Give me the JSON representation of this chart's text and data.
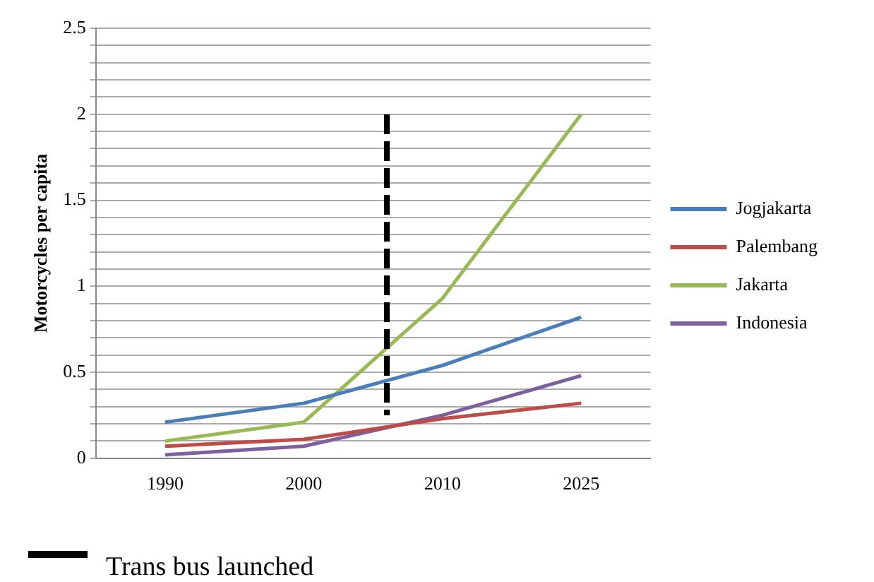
{
  "chart_data": {
    "type": "line",
    "ylabel": "Motorcycles per capita",
    "categories": [
      "1990",
      "2000",
      "2010",
      "2025"
    ],
    "series": [
      {
        "name": "Jogjakarta",
        "color": "#4a7ebb",
        "values": [
          0.21,
          0.32,
          0.54,
          0.82
        ]
      },
      {
        "name": "Palembang",
        "color": "#be4b48",
        "values": [
          0.07,
          0.11,
          0.23,
          0.32
        ]
      },
      {
        "name": "Jakarta",
        "color": "#98b954",
        "values": [
          0.1,
          0.21,
          0.93,
          2.0
        ]
      },
      {
        "name": "Indonesia",
        "color": "#7d60a0",
        "values": [
          0.02,
          0.07,
          0.25,
          0.48
        ]
      }
    ],
    "annotations": [
      "Trans bus launched"
    ],
    "ylim": [
      0,
      2.5
    ],
    "yticks": [
      0,
      {
        "value": 0.1,
        "label": null
      },
      {
        "value": 0.2,
        "label": null
      },
      {
        "value": 0.3,
        "label": null
      },
      {
        "value": 0.4,
        "label": null
      },
      0.5,
      {
        "value": 0.6,
        "label": null
      },
      {
        "value": 0.7,
        "label": null
      },
      {
        "value": 0.8,
        "label": null
      },
      {
        "value": 0.9,
        "label": null
      },
      1,
      {
        "value": 1.1,
        "label": null
      },
      {
        "value": 1.2,
        "label": null
      },
      {
        "value": 1.3,
        "label": null
      },
      {
        "value": 1.4,
        "label": null
      },
      1.5,
      {
        "value": 1.6,
        "label": null
      },
      {
        "value": 1.7,
        "label": null
      },
      {
        "value": 1.8,
        "label": null
      },
      {
        "value": 1.9,
        "label": null
      },
      2,
      {
        "value": 2.1,
        "label": null
      },
      {
        "value": 2.2,
        "label": null
      },
      {
        "value": 2.3,
        "label": null
      },
      {
        "value": 2.4,
        "label": null
      },
      2.5
    ],
    "grid": "y",
    "legend": "right",
    "marker": "none",
    "line_style": "solid"
  }
}
